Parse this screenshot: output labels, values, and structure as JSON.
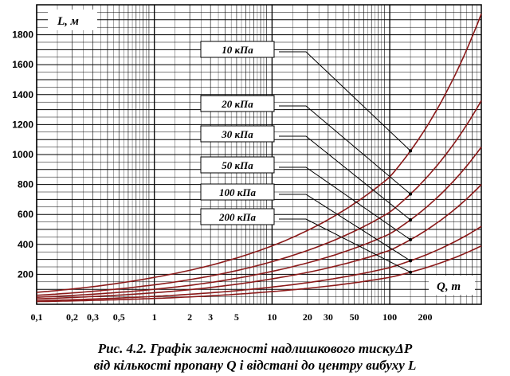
{
  "chart_data": {
    "type": "line",
    "title": "",
    "ylabel": "L, м",
    "xlabel": "Q, т",
    "xscale": "log",
    "xlim": [
      0.1,
      600
    ],
    "ylim": [
      0,
      2000
    ],
    "y_ticks": [
      200,
      400,
      600,
      800,
      1000,
      1200,
      1400,
      1600,
      1800
    ],
    "x_tick_labels": [
      {
        "v": 0.1,
        "label": "0,1"
      },
      {
        "v": 0.2,
        "label": "0,2"
      },
      {
        "v": 0.3,
        "label": "0,3"
      },
      {
        "v": 0.5,
        "label": "0,5"
      },
      {
        "v": 1,
        "label": "1"
      },
      {
        "v": 2,
        "label": "2"
      },
      {
        "v": 3,
        "label": "3"
      },
      {
        "v": 5,
        "label": "5"
      },
      {
        "v": 10,
        "label": "10"
      },
      {
        "v": 20,
        "label": "20"
      },
      {
        "v": 30,
        "label": "30"
      },
      {
        "v": 50,
        "label": "50"
      },
      {
        "v": 100,
        "label": "100"
      },
      {
        "v": 200,
        "label": "200"
      }
    ],
    "grid": true,
    "series": [
      {
        "name": "10 кПа",
        "x": [
          0.1,
          1,
          10,
          100,
          600
        ],
        "y": [
          80,
          180,
          390,
          850,
          1940
        ]
      },
      {
        "name": "20 кПа",
        "x": [
          0.1,
          1,
          10,
          100,
          600
        ],
        "y": [
          60,
          130,
          285,
          615,
          1360
        ]
      },
      {
        "name": "30 кПа",
        "x": [
          0.1,
          1,
          10,
          100,
          600
        ],
        "y": [
          47,
          100,
          220,
          470,
          1050
        ]
      },
      {
        "name": "50 кПа",
        "x": [
          0.1,
          1,
          10,
          100,
          600
        ],
        "y": [
          36,
          77,
          170,
          360,
          800
        ]
      },
      {
        "name": "100 кПа",
        "x": [
          0.1,
          1,
          10,
          100,
          600
        ],
        "y": [
          24,
          53,
          115,
          245,
          520
        ]
      },
      {
        "name": "200 кПа",
        "x": [
          0.1,
          1,
          10,
          100,
          600
        ],
        "y": [
          18,
          39,
          85,
          180,
          390
        ]
      }
    ],
    "label_x": [
      150,
      150,
      150,
      150,
      150,
      150
    ]
  },
  "caption": {
    "line1": "Рис. 4.2. Графік залежності надлишкового тискуΔР",
    "line2": "від кількості пропану Q і відстані до центру вибуху L"
  },
  "colors": {
    "curve": "#8b1a1a",
    "grid": "#000000"
  }
}
